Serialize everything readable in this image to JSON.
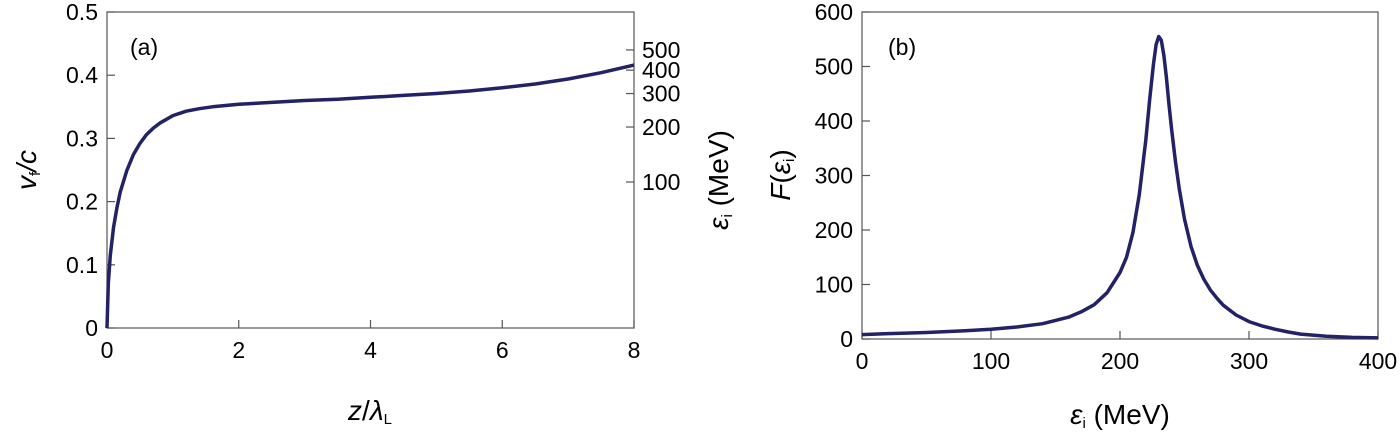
{
  "colors": {
    "curve": "#222266",
    "frame": "#555555"
  },
  "chart_data": [
    {
      "type": "line",
      "panel_label": "(a)",
      "xlabel": {
        "main": "z",
        "sep": "/",
        "sym": "λ",
        "sub": "L"
      },
      "ylabel": {
        "main": "v",
        "sub": "f",
        "tail": "/c"
      },
      "right_ylabel": {
        "sym": "ε",
        "sub": "i",
        "tail": " (MeV)"
      },
      "xlim": [
        0,
        8
      ],
      "ylim": [
        0,
        0.5
      ],
      "x_ticks": [
        0,
        2,
        4,
        6,
        8
      ],
      "x_tick_labels": [
        "0",
        "2",
        "4",
        "6",
        "8"
      ],
      "y_ticks": [
        0,
        0.1,
        0.2,
        0.3,
        0.4,
        0.5
      ],
      "y_tick_labels": [
        "0",
        "0.1",
        "0.2",
        "0.3",
        "0.4",
        "0.5"
      ],
      "right_ticks_at_left_value": [
        0.231,
        0.318,
        0.371,
        0.408,
        0.44
      ],
      "right_tick_labels": [
        "100",
        "200",
        "300",
        "400",
        "500"
      ],
      "grid": false,
      "series": [
        {
          "x": [
            0,
            0.02,
            0.05,
            0.1,
            0.15,
            0.2,
            0.3,
            0.4,
            0.5,
            0.6,
            0.7,
            0.8,
            1.0,
            1.2,
            1.4,
            1.6,
            1.8,
            2.0,
            2.5,
            3.0,
            3.5,
            4.0,
            4.5,
            5.0,
            5.5,
            6.0,
            6.5,
            7.0,
            7.5,
            8.0
          ],
          "y": [
            0,
            0.07,
            0.115,
            0.16,
            0.19,
            0.215,
            0.249,
            0.274,
            0.292,
            0.306,
            0.316,
            0.324,
            0.336,
            0.343,
            0.347,
            0.35,
            0.352,
            0.354,
            0.357,
            0.36,
            0.362,
            0.365,
            0.368,
            0.371,
            0.375,
            0.38,
            0.386,
            0.394,
            0.404,
            0.416
          ]
        }
      ]
    },
    {
      "type": "line",
      "panel_label": "(b)",
      "xlabel": {
        "sym": "ε",
        "sub": "i",
        "tail": " (MeV)"
      },
      "ylabel": {
        "main": "F",
        "open": "(",
        "sym": "ε",
        "sub": "i",
        "close": ")"
      },
      "xlim": [
        0,
        400
      ],
      "ylim": [
        0,
        600
      ],
      "x_ticks": [
        0,
        100,
        200,
        300,
        400
      ],
      "x_tick_labels": [
        "0",
        "100",
        "200",
        "300",
        "400"
      ],
      "y_ticks": [
        0,
        100,
        200,
        300,
        400,
        500,
        600
      ],
      "y_tick_labels": [
        "0",
        "100",
        "200",
        "300",
        "400",
        "500",
        "600"
      ],
      "grid": false,
      "series": [
        {
          "x": [
            0,
            20,
            50,
            80,
            100,
            120,
            140,
            160,
            170,
            180,
            190,
            200,
            205,
            210,
            215,
            220,
            223,
            226,
            228,
            230,
            232,
            234,
            236,
            238,
            240,
            243,
            246,
            250,
            255,
            260,
            265,
            270,
            275,
            280,
            290,
            300,
            310,
            320,
            330,
            340,
            360,
            380,
            400
          ],
          "y": [
            8,
            10,
            12,
            15,
            18,
            22,
            28,
            40,
            50,
            63,
            85,
            122,
            150,
            195,
            265,
            365,
            440,
            505,
            540,
            555,
            548,
            520,
            480,
            430,
            385,
            325,
            275,
            220,
            170,
            135,
            110,
            90,
            75,
            62,
            44,
            32,
            24,
            18,
            13,
            9,
            5,
            3,
            2
          ]
        }
      ]
    }
  ]
}
